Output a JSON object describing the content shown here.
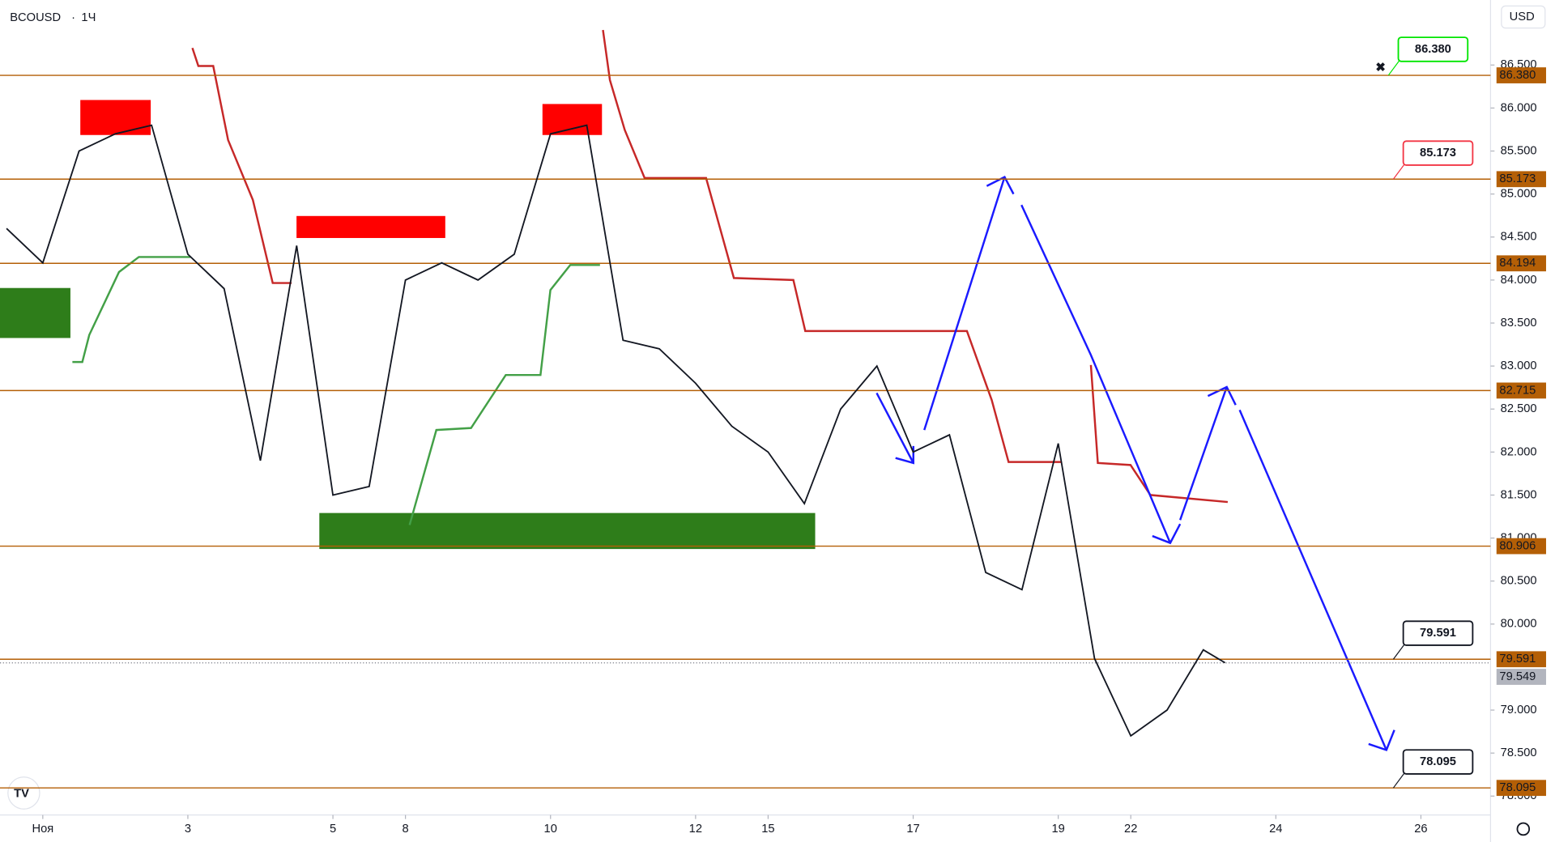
{
  "chart_data": {
    "type": "line",
    "symbol": "BCOUSD",
    "interval": "1Ч",
    "currency": "USD",
    "series": [
      {
        "name": "BCOUSD",
        "color": "#131722",
        "x": [
          -0.5,
          0,
          0.5,
          1,
          1.5,
          2,
          2.5,
          3,
          3.5,
          4,
          4.5,
          5,
          5.5,
          6,
          6.5,
          7,
          7.5,
          8,
          8.5,
          9,
          9.5,
          10,
          10.5,
          11,
          11.5,
          12,
          12.5,
          13,
          13.5,
          14,
          14.5,
          15,
          15.5,
          16,
          16.3
        ],
        "values": [
          84.6,
          84.2,
          85.5,
          85.7,
          85.8,
          84.3,
          83.9,
          81.9,
          84.4,
          81.5,
          81.6,
          84.0,
          84.2,
          84.0,
          84.3,
          85.7,
          85.8,
          83.3,
          83.2,
          82.8,
          82.3,
          82.0,
          81.4,
          82.5,
          83.0,
          82.0,
          82.2,
          80.6,
          80.4,
          82.1,
          79.6,
          78.7,
          79.0,
          79.7,
          79.55
        ]
      }
    ],
    "xlim": [
      -0.59,
      19.96
    ],
    "xticks": [
      {
        "value": 0,
        "label": "Ноя"
      },
      {
        "value": 2,
        "label": "3"
      },
      {
        "value": 4,
        "label": "5"
      },
      {
        "value": 5,
        "label": "8"
      },
      {
        "value": 7,
        "label": "10"
      },
      {
        "value": 9,
        "label": "12"
      },
      {
        "value": 10,
        "label": "15"
      },
      {
        "value": 12,
        "label": "17"
      },
      {
        "value": 14,
        "label": "19"
      },
      {
        "value": 15,
        "label": "22"
      },
      {
        "value": 17,
        "label": "24"
      },
      {
        "value": 19,
        "label": "26"
      }
    ],
    "ylim": [
      77.78,
      87.256
    ],
    "yticks": [
      {
        "value": 78.0,
        "label": "78.000"
      },
      {
        "value": 78.5,
        "label": "78.500"
      },
      {
        "value": 79.0,
        "label": "79.000"
      },
      {
        "value": 80.0,
        "label": "80.000"
      },
      {
        "value": 80.5,
        "label": "80.500"
      },
      {
        "value": 81.0,
        "label": "81.000"
      },
      {
        "value": 81.5,
        "label": "81.500"
      },
      {
        "value": 82.0,
        "label": "82.000"
      },
      {
        "value": 82.5,
        "label": "82.500"
      },
      {
        "value": 83.0,
        "label": "83.000"
      },
      {
        "value": 83.5,
        "label": "83.500"
      },
      {
        "value": 84.0,
        "label": "84.000"
      },
      {
        "value": 84.5,
        "label": "84.500"
      },
      {
        "value": 85.0,
        "label": "85.000"
      },
      {
        "value": 85.5,
        "label": "85.500"
      },
      {
        "value": 86.0,
        "label": "86.000"
      },
      {
        "value": 86.5,
        "label": "86.500"
      }
    ],
    "levels": [
      {
        "value": 86.38,
        "label": "86.380"
      },
      {
        "value": 85.173,
        "label": "85.173"
      },
      {
        "value": 84.194,
        "label": "84.194"
      },
      {
        "value": 82.715,
        "label": "82.715"
      },
      {
        "value": 80.906,
        "label": "80.906"
      },
      {
        "value": 79.591,
        "label": "79.591"
      },
      {
        "value": 78.095,
        "label": "78.095"
      }
    ],
    "last_price": {
      "value": 79.549,
      "label": "79.549"
    },
    "callouts": [
      {
        "value": 86.38,
        "label": "86.380",
        "color": "#00e600"
      },
      {
        "value": 85.173,
        "label": "85.173",
        "color": "#f23645"
      },
      {
        "value": 79.591,
        "label": "79.591",
        "color": "#131722"
      },
      {
        "value": 78.095,
        "label": "78.095",
        "color": "#131722"
      }
    ]
  }
}
